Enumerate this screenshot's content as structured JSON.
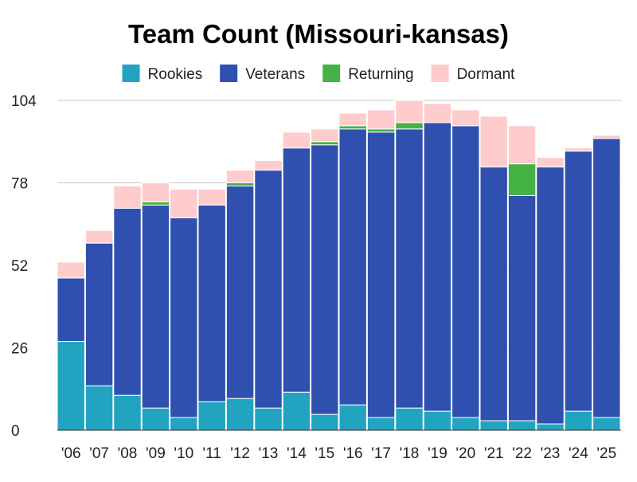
{
  "chart_data": {
    "type": "bar",
    "stacked": true,
    "title": "Team Count (Missouri-kansas)",
    "xlabel": "",
    "ylabel": "",
    "ylim": [
      0,
      104
    ],
    "yticks": [
      0,
      26,
      52,
      78,
      104
    ],
    "grid": true,
    "legend_position": "top",
    "categories": [
      "'06",
      "'07",
      "'08",
      "'09",
      "'10",
      "'11",
      "'12",
      "'13",
      "'14",
      "'15",
      "'16",
      "'17",
      "'18",
      "'19",
      "'20",
      "'21",
      "'22",
      "'23",
      "'24",
      "'25"
    ],
    "series": [
      {
        "name": "Rookies",
        "color": "#22a3bf",
        "values": [
          28,
          14,
          11,
          7,
          4,
          9,
          10,
          7,
          12,
          5,
          8,
          4,
          7,
          6,
          4,
          3,
          3,
          2,
          6,
          4
        ]
      },
      {
        "name": "Veterans",
        "color": "#3050b0",
        "values": [
          20,
          45,
          59,
          64,
          63,
          62,
          67,
          75,
          77,
          85,
          87,
          90,
          88,
          91,
          92,
          80,
          71,
          81,
          82,
          88
        ]
      },
      {
        "name": "Returning",
        "color": "#44b244",
        "values": [
          0,
          0,
          0,
          1,
          0,
          0,
          1,
          0,
          0,
          1,
          1,
          1,
          2,
          0,
          0,
          0,
          10,
          0,
          0,
          0
        ]
      },
      {
        "name": "Dormant",
        "color": "#fecccd",
        "values": [
          5,
          4,
          7,
          6,
          9,
          5,
          4,
          3,
          5,
          4,
          4,
          6,
          7,
          6,
          5,
          16,
          12,
          3,
          1,
          1
        ]
      }
    ]
  }
}
